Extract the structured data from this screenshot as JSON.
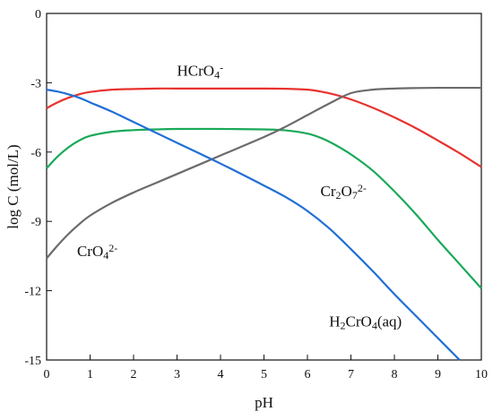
{
  "chart_data": {
    "type": "line",
    "title": "",
    "xlabel": "pH",
    "ylabel": "log C (mol/L)",
    "xlim": [
      0,
      10
    ],
    "ylim": [
      -15,
      0
    ],
    "xticks": [
      0,
      1,
      2,
      3,
      4,
      5,
      6,
      7,
      8,
      9,
      10
    ],
    "yticks": [
      0,
      -3,
      -6,
      -9,
      -12,
      -15
    ],
    "grid": false,
    "legend": "none (inline labels)",
    "series": [
      {
        "name": "HCrO4-",
        "label_parts": [
          {
            "t": "HCrO"
          },
          {
            "t": "4",
            "s": "sub"
          },
          {
            "t": "-",
            "s": "sup"
          }
        ],
        "label_at": [
          3.0,
          -2.7
        ],
        "color": "#e8322e",
        "x": [
          0,
          0.25,
          0.5,
          0.75,
          1.0,
          1.5,
          2.0,
          2.5,
          3.0,
          4.0,
          5.0,
          5.5,
          6.0,
          6.3,
          6.6,
          7.0,
          7.5,
          8.0,
          8.5,
          9.0,
          9.5,
          10.0
        ],
        "y": [
          -4.1,
          -3.85,
          -3.65,
          -3.5,
          -3.4,
          -3.3,
          -3.27,
          -3.25,
          -3.25,
          -3.25,
          -3.25,
          -3.26,
          -3.3,
          -3.38,
          -3.5,
          -3.72,
          -4.08,
          -4.5,
          -4.97,
          -5.5,
          -6.05,
          -6.65
        ]
      },
      {
        "name": "Cr2O72-",
        "label_parts": [
          {
            "t": "Cr"
          },
          {
            "t": "2",
            "s": "sub"
          },
          {
            "t": "O"
          },
          {
            "t": "7",
            "s": "sub"
          },
          {
            "t": "2-",
            "s": "sup"
          }
        ],
        "label_at": [
          6.3,
          -7.9
        ],
        "color": "#1aa95a",
        "x": [
          0,
          0.25,
          0.5,
          0.75,
          1.0,
          1.5,
          2.0,
          2.5,
          3.0,
          4.0,
          5.0,
          5.5,
          6.0,
          6.3,
          6.6,
          7.0,
          7.5,
          8.0,
          8.5,
          9.0,
          9.5,
          10.0
        ],
        "y": [
          -6.7,
          -6.2,
          -5.8,
          -5.5,
          -5.3,
          -5.12,
          -5.05,
          -5.02,
          -5.0,
          -5.0,
          -5.02,
          -5.06,
          -5.2,
          -5.38,
          -5.65,
          -6.1,
          -6.8,
          -7.7,
          -8.7,
          -9.8,
          -10.85,
          -11.9
        ]
      },
      {
        "name": "CrO42-",
        "label_parts": [
          {
            "t": "CrO"
          },
          {
            "t": "4",
            "s": "sub"
          },
          {
            "t": "2-",
            "s": "sup"
          }
        ],
        "label_at": [
          0.7,
          -10.5
        ],
        "color": "#6b6b6b",
        "x": [
          0,
          0.25,
          0.5,
          0.75,
          1.0,
          1.5,
          2.0,
          2.5,
          3.0,
          4.0,
          5.0,
          5.5,
          6.0,
          6.5,
          7.0,
          7.5,
          8.0,
          8.5,
          9.0,
          9.5,
          10.0
        ],
        "y": [
          -10.6,
          -10.05,
          -9.55,
          -9.12,
          -8.75,
          -8.2,
          -7.75,
          -7.35,
          -6.95,
          -6.15,
          -5.35,
          -4.9,
          -4.4,
          -3.9,
          -3.45,
          -3.3,
          -3.25,
          -3.23,
          -3.22,
          -3.22,
          -3.22
        ]
      },
      {
        "name": "H2CrO4(aq)",
        "label_parts": [
          {
            "t": "H"
          },
          {
            "t": "2",
            "s": "sub"
          },
          {
            "t": "CrO"
          },
          {
            "t": "4",
            "s": "sub"
          },
          {
            "t": "(aq)"
          }
        ],
        "label_at": [
          6.5,
          -13.55
        ],
        "color": "#1f6fd6",
        "x": [
          0,
          0.25,
          0.5,
          0.75,
          1.0,
          1.5,
          2.0,
          2.5,
          3.0,
          4.0,
          5.0,
          5.5,
          6.0,
          6.5,
          7.0,
          7.5,
          8.0,
          8.5,
          9.0,
          9.5
        ],
        "y": [
          -3.3,
          -3.38,
          -3.5,
          -3.65,
          -3.85,
          -4.25,
          -4.7,
          -5.15,
          -5.6,
          -6.5,
          -7.45,
          -7.95,
          -8.55,
          -9.3,
          -10.2,
          -11.15,
          -12.15,
          -13.1,
          -14.05,
          -15.0
        ]
      }
    ]
  }
}
